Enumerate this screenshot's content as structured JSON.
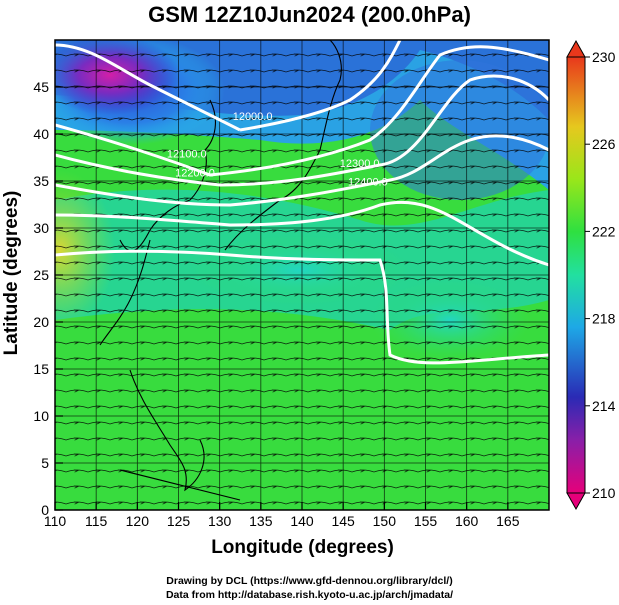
{
  "title": "GSM 12Z10Jun2024 (200.0hPa)",
  "xlabel": "Longitude (degrees)",
  "ylabel": "Latitude  (degrees)",
  "credits": {
    "line1": "Drawing by DCL (https://www.gfd-dennou.org/library/dcl/)",
    "line2": "Data from http://database.rish.kyoto-u.ac.jp/arch/jmadata/"
  },
  "chart_data": {
    "type": "heatmap",
    "x_ticks": [
      "110",
      "115",
      "120",
      "125",
      "130",
      "135",
      "140",
      "145",
      "150",
      "155",
      "160",
      "165"
    ],
    "y_ticks": [
      "0",
      "5",
      "10",
      "15",
      "20",
      "25",
      "30",
      "35",
      "40",
      "45"
    ],
    "xlim": [
      110,
      170
    ],
    "ylim": [
      0,
      50
    ],
    "colorbar": {
      "ticks": [
        "230",
        "226",
        "222",
        "218",
        "214",
        "210"
      ],
      "range": [
        210,
        230
      ],
      "colors": [
        "#e8006f",
        "#2a2ab0",
        "#20a6e0",
        "#2fe048",
        "#a6e61a",
        "#e2a020",
        "#e83c1c"
      ]
    },
    "contour_labels": [
      {
        "text": "12000.0",
        "lon": 134,
        "lat": 41.5
      },
      {
        "text": "12100.0",
        "lon": 126,
        "lat": 37.5
      },
      {
        "text": "12200.0",
        "lon": 127,
        "lat": 35.5
      },
      {
        "text": "12300.0",
        "lon": 147,
        "lat": 36.5
      },
      {
        "text": "12400.0",
        "lon": 148,
        "lat": 34.5
      }
    ]
  }
}
